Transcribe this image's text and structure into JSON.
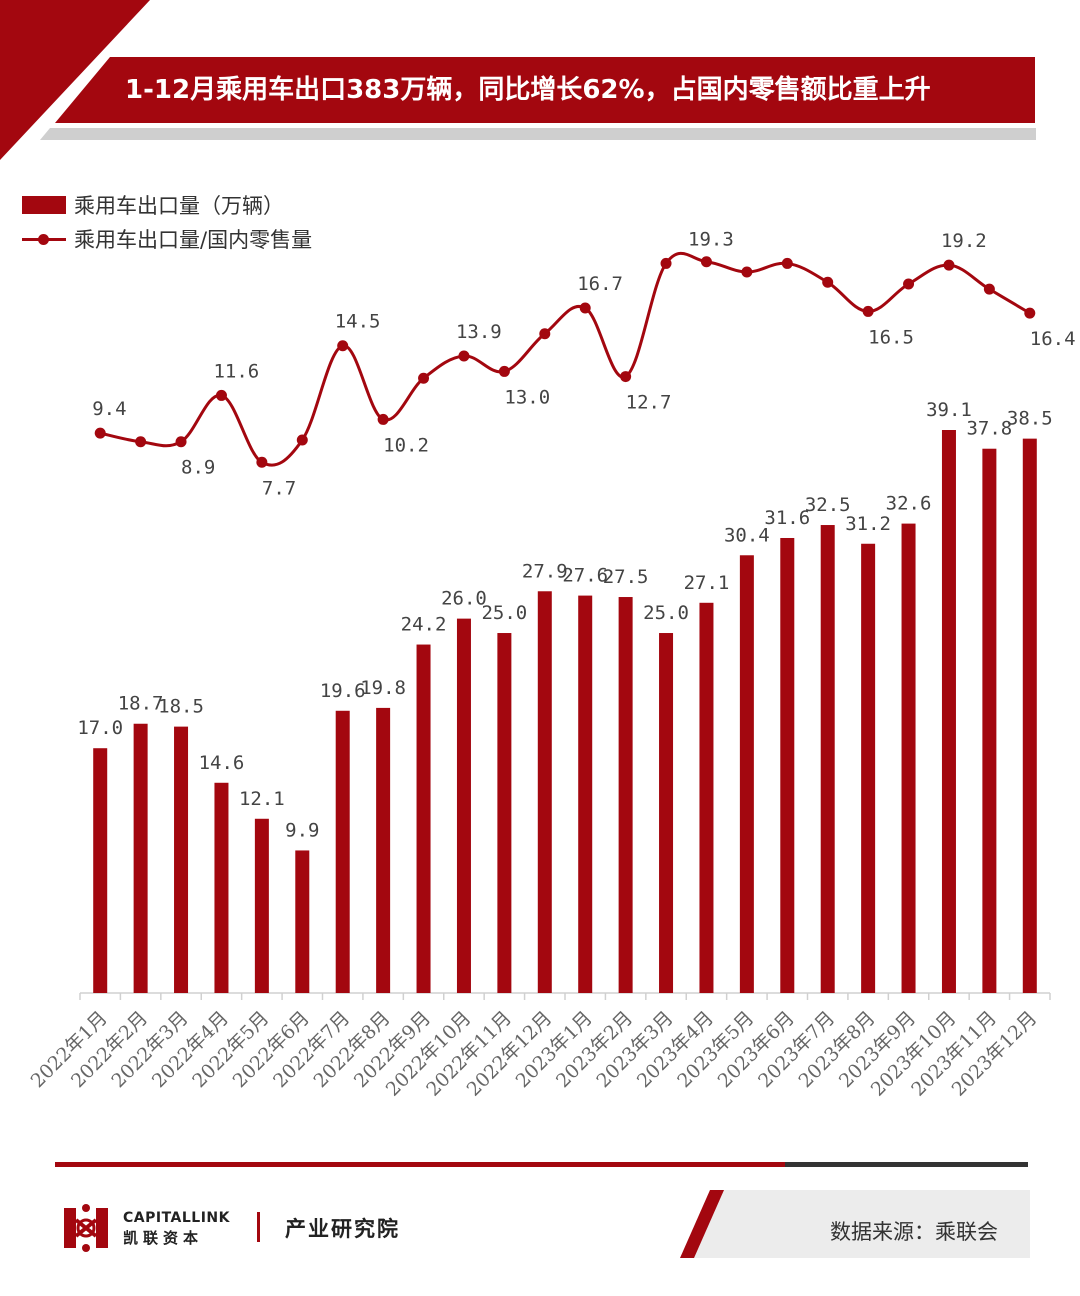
{
  "title": "1-12月乘用车出口383万辆，同比增长62%，占国内零售额比重上升",
  "legend": {
    "bar_label": "乘用车出口量（万辆）",
    "line_label": "乘用车出口量/国内零售量"
  },
  "colors": {
    "accent": "#a3070f",
    "muted": "#cfcfcf"
  },
  "footer": {
    "logo_en": "CAPITALLINK",
    "logo_cn": "凯联资本",
    "institute": "产业研究院",
    "source": "数据来源：乘联会"
  },
  "chart_data": {
    "type": "bar",
    "categories": [
      "2022年1月",
      "2022年2月",
      "2022年3月",
      "2022年4月",
      "2022年5月",
      "2022年6月",
      "2022年7月",
      "2022年8月",
      "2022年9月",
      "2022年10月",
      "2022年11月",
      "2022年12月",
      "2023年1月",
      "2023年2月",
      "2023年3月",
      "2023年4月",
      "2023年5月",
      "2023年6月",
      "2023年7月",
      "2023年8月",
      "2023年9月",
      "2023年10月",
      "2023年11月",
      "2023年12月"
    ],
    "series": [
      {
        "name": "乘用车出口量（万辆）",
        "type": "bar",
        "values": [
          17.0,
          18.7,
          18.5,
          14.6,
          12.1,
          9.9,
          19.6,
          19.8,
          24.2,
          26.0,
          25.0,
          27.9,
          27.6,
          27.5,
          25.0,
          27.1,
          30.4,
          31.6,
          32.5,
          31.2,
          32.6,
          39.1,
          37.8,
          38.5
        ],
        "labels": [
          "17.0",
          "18.7",
          "18.5",
          "14.6",
          "12.1",
          "9.9",
          "19.6",
          "19.8",
          "24.2",
          "26.0",
          "25.0",
          "27.9",
          "27.6",
          "27.5",
          "25.0",
          "27.1",
          "30.4",
          "31.6",
          "32.5",
          "31.2",
          "32.6",
          "39.1",
          "37.8",
          "38.5"
        ]
      },
      {
        "name": "乘用车出口量/国内零售量",
        "type": "line",
        "values": [
          9.4,
          8.9,
          8.9,
          11.6,
          7.7,
          9.0,
          14.5,
          10.2,
          12.6,
          13.9,
          13.0,
          15.2,
          16.7,
          12.7,
          19.3,
          19.4,
          18.8,
          19.3,
          18.2,
          16.5,
          18.1,
          19.2,
          17.8,
          16.4
        ],
        "labels": [
          "9.4",
          "",
          "8.9",
          "11.6",
          "7.7",
          "",
          "14.5",
          "10.2",
          "",
          "13.9",
          "13.0",
          "",
          "16.7",
          "12.7",
          "19.3",
          "",
          "",
          "",
          "",
          "16.5",
          "",
          "19.2",
          "",
          "16.4"
        ]
      }
    ],
    "bar_ylim": [
      0,
      45
    ],
    "line_ylim": [
      -26,
      23
    ],
    "legend_position": "top-left",
    "grid": false
  }
}
